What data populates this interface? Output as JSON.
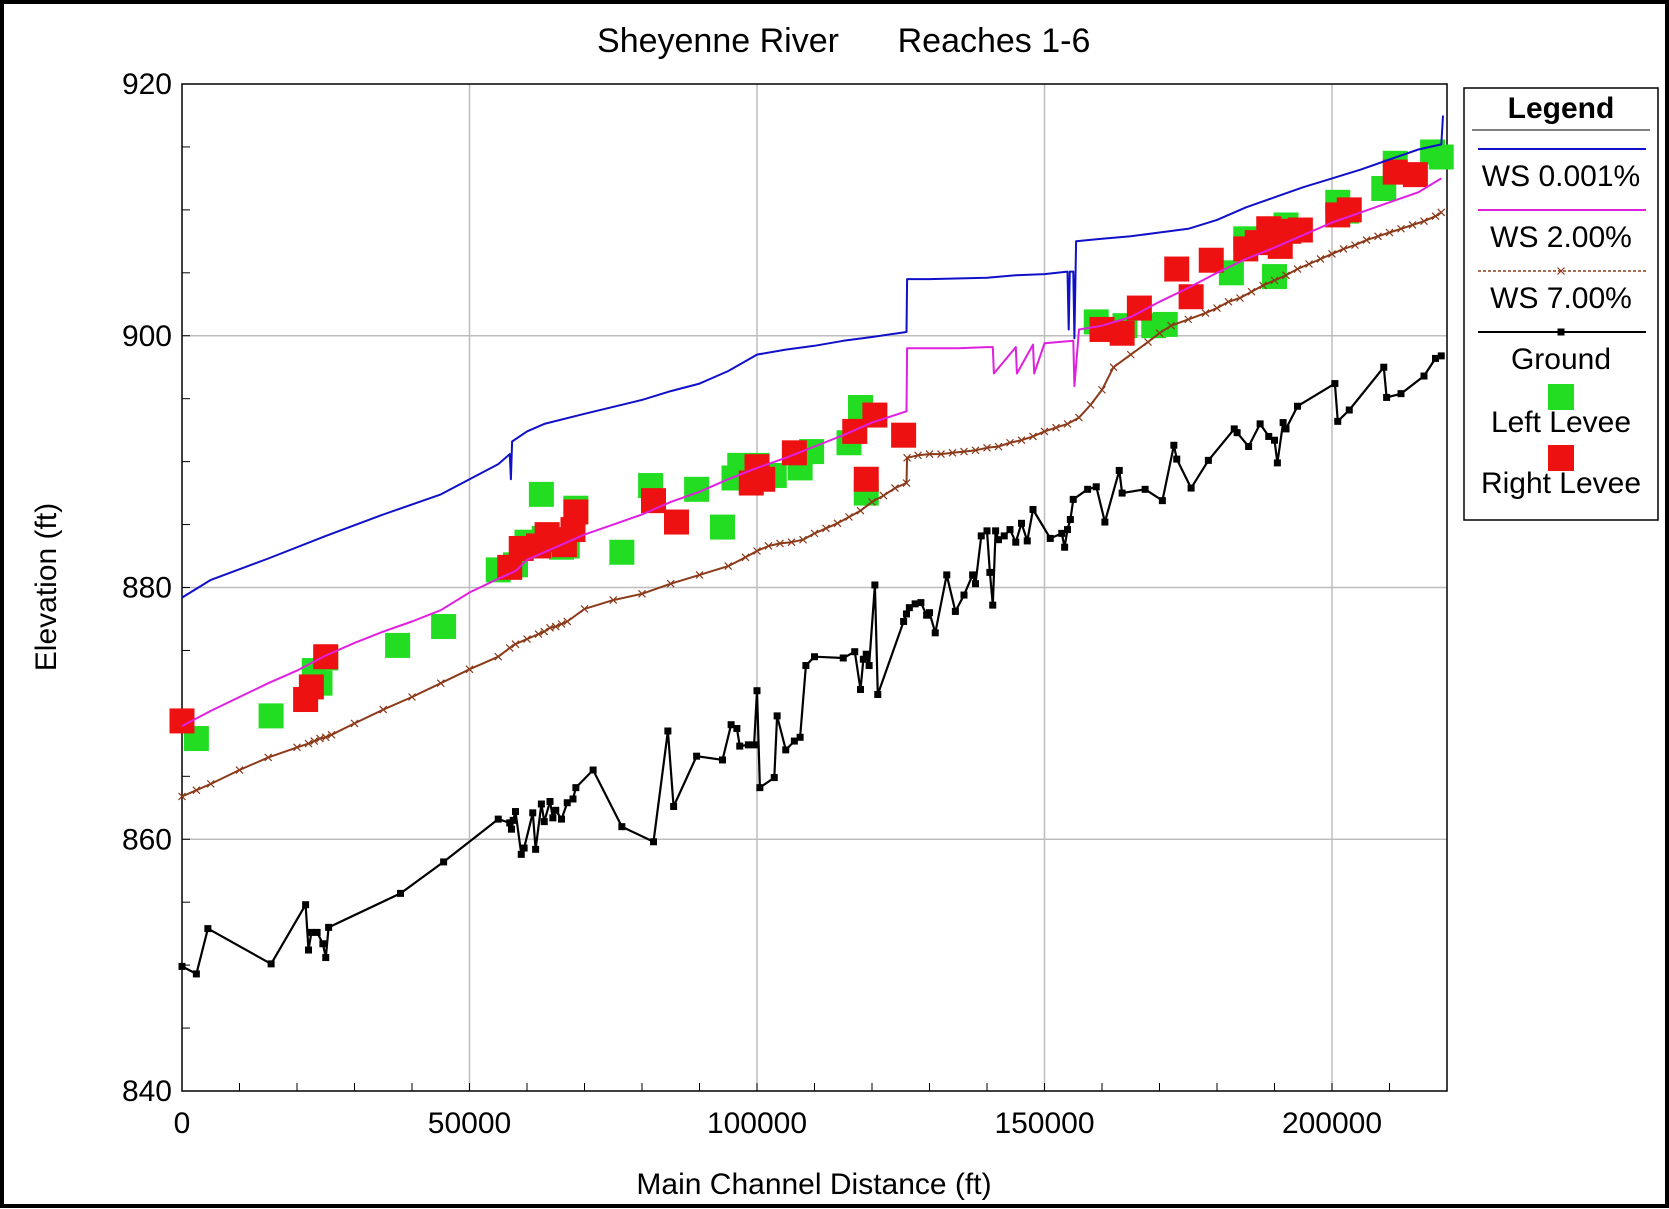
{
  "chart_data": {
    "type": "line",
    "title_left": "Sheyenne River",
    "title_right": "Reaches 1-6",
    "xlabel": "Main Channel Distance (ft)",
    "ylabel": "Elevation (ft)",
    "xlim": [
      0,
      220000
    ],
    "ylim": [
      840,
      920
    ],
    "x_ticks": [
      0,
      50000,
      100000,
      150000,
      200000
    ],
    "x_tick_labels": [
      "0",
      "50000",
      "100000",
      "150000",
      "200000"
    ],
    "y_ticks": [
      840,
      860,
      880,
      900,
      920
    ],
    "y_tick_labels": [
      "840",
      "860",
      "880",
      "900",
      "920"
    ],
    "grid": true,
    "legend": {
      "title": "Legend",
      "placement": "right",
      "entries": [
        "WS  0.001%",
        "WS  2.00%",
        "WS  7.00%",
        "Ground",
        "Left Levee",
        "Right Levee"
      ]
    },
    "series": [
      {
        "name": "WS  0.001%",
        "color": "#1010c8",
        "style": "line",
        "x": [
          0,
          5000,
          15000,
          25000,
          35000,
          45000,
          55000,
          57000,
          57200,
          57400,
          60000,
          63000,
          70000,
          80000,
          85000,
          90000,
          95000,
          100000,
          105000,
          110000,
          115000,
          120000,
          126000,
          126100,
          130000,
          140000,
          145000,
          150000,
          154000,
          154200,
          154400,
          155000,
          155200,
          155500,
          160000,
          165000,
          170000,
          175000,
          180000,
          185000,
          190000,
          195000,
          200000,
          205000,
          210000,
          215000,
          219000,
          219300
        ],
        "y": [
          879.2,
          880.6,
          882.3,
          884.1,
          885.8,
          887.4,
          889.8,
          890.6,
          888.6,
          891.6,
          892.4,
          893.0,
          893.8,
          894.9,
          895.6,
          896.2,
          897.2,
          898.5,
          898.9,
          899.2,
          899.6,
          899.9,
          900.3,
          904.5,
          904.5,
          904.6,
          904.8,
          904.9,
          905.1,
          900.5,
          905.1,
          905.1,
          899.8,
          907.5,
          907.7,
          907.9,
          908.2,
          908.5,
          909.2,
          910.2,
          911.0,
          911.8,
          912.5,
          913.2,
          914.0,
          914.8,
          915.2,
          917.5
        ]
      },
      {
        "name": "WS  2.00%",
        "color": "#e020e0",
        "style": "line",
        "x": [
          0,
          5000,
          10000,
          15000,
          20000,
          25000,
          30000,
          35000,
          40000,
          45000,
          50000,
          55000,
          58000,
          60000,
          65000,
          70000,
          75000,
          80000,
          85000,
          90000,
          95000,
          100000,
          105000,
          110000,
          115000,
          120000,
          126000,
          126100,
          130000,
          135000,
          140000,
          141000,
          141200,
          145000,
          145200,
          148000,
          148200,
          150000,
          155000,
          155200,
          156000,
          160000,
          165000,
          170000,
          175000,
          180000,
          185000,
          190000,
          195000,
          200000,
          205000,
          210000,
          215000,
          219000
        ],
        "y": [
          869.0,
          870.2,
          871.3,
          872.4,
          873.4,
          874.6,
          875.6,
          876.5,
          877.3,
          878.2,
          879.6,
          880.7,
          881.3,
          882.2,
          883.2,
          884.2,
          885.0,
          885.8,
          886.8,
          887.6,
          888.6,
          889.5,
          890.3,
          891.2,
          892.1,
          893.1,
          894.0,
          899.0,
          899.0,
          899.0,
          899.1,
          899.1,
          897.0,
          899.1,
          897.0,
          899.3,
          897.0,
          899.4,
          899.6,
          896.0,
          900.5,
          900.8,
          901.5,
          902.7,
          903.8,
          905.0,
          906.1,
          907.0,
          908.0,
          909.0,
          909.8,
          910.6,
          911.4,
          912.5
        ]
      },
      {
        "name": "WS  7.00%",
        "color": "#8b3a1a",
        "style": "line-x-markers",
        "x": [
          0,
          2500,
          5000,
          10000,
          15000,
          20000,
          22000,
          23000,
          24000,
          25000,
          26000,
          30000,
          35000,
          40000,
          45000,
          50000,
          55000,
          57000,
          58000,
          60000,
          62000,
          63000,
          64000,
          65000,
          66000,
          67000,
          70000,
          75000,
          80000,
          85000,
          90000,
          95000,
          98000,
          100000,
          102000,
          104000,
          106000,
          108000,
          110000,
          112000,
          114000,
          116000,
          118000,
          120000,
          122000,
          124000,
          126000,
          126100,
          128000,
          130000,
          132000,
          134000,
          136000,
          138000,
          140000,
          142000,
          144000,
          146000,
          148000,
          150000,
          152000,
          154000,
          156000,
          158000,
          160000,
          162000,
          165000,
          168000,
          170000,
          172000,
          175000,
          178000,
          180000,
          182000,
          184000,
          186000,
          188000,
          190000,
          192000,
          194000,
          196000,
          198000,
          200000,
          202000,
          204000,
          206000,
          208000,
          210000,
          212000,
          214000,
          216000,
          218000,
          219000
        ],
        "y": [
          863.4,
          863.9,
          864.4,
          865.5,
          866.5,
          867.3,
          867.6,
          867.8,
          868.0,
          868.1,
          868.3,
          869.2,
          870.3,
          871.3,
          872.4,
          873.5,
          874.5,
          875.2,
          875.5,
          875.9,
          876.3,
          876.5,
          876.8,
          876.9,
          877.1,
          877.3,
          878.3,
          879.0,
          879.5,
          880.3,
          881.0,
          881.7,
          882.4,
          882.9,
          883.3,
          883.5,
          883.6,
          883.8,
          884.3,
          884.7,
          885.1,
          885.6,
          886.1,
          886.8,
          887.3,
          887.9,
          888.3,
          890.3,
          890.5,
          890.6,
          890.6,
          890.7,
          890.8,
          890.9,
          891.1,
          891.2,
          891.5,
          891.7,
          892.0,
          892.4,
          892.7,
          893.0,
          893.5,
          894.5,
          895.7,
          897.5,
          898.5,
          899.5,
          900.2,
          900.8,
          901.3,
          901.8,
          902.2,
          902.7,
          903.0,
          903.5,
          904.0,
          904.4,
          904.8,
          905.3,
          905.7,
          906.1,
          906.5,
          906.9,
          907.2,
          907.6,
          907.9,
          908.2,
          908.5,
          908.8,
          909.1,
          909.5,
          909.8
        ]
      },
      {
        "name": "Ground",
        "color": "#000000",
        "style": "line-square-markers",
        "x": [
          0,
          2500,
          4500,
          15500,
          21500,
          22000,
          22500,
          23500,
          24500,
          25000,
          25500,
          38000,
          45500,
          55000,
          57000,
          57300,
          57600,
          58000,
          59000,
          59500,
          61000,
          61500,
          62500,
          63000,
          64000,
          64500,
          65000,
          66000,
          67000,
          68000,
          68500,
          71500,
          76500,
          82000,
          84500,
          85500,
          89500,
          94000,
          95500,
          96500,
          97000,
          98500,
          99500,
          100000,
          100500,
          103000,
          103500,
          105000,
          106500,
          107500,
          108500,
          110000,
          115000,
          117000,
          118000,
          118500,
          119000,
          119500,
          120500,
          121000,
          125500,
          126000,
          126500,
          127500,
          128500,
          129500,
          130000,
          131000,
          133000,
          134500,
          136000,
          137500,
          138000,
          139000,
          140000,
          140500,
          141000,
          141500,
          142000,
          143000,
          144000,
          145000,
          146000,
          147000,
          148000,
          151000,
          153000,
          153500,
          154000,
          154500,
          155000,
          157500,
          159000,
          160500,
          163000,
          163500,
          167500,
          170500,
          172500,
          173000,
          175500,
          178500,
          183000,
          183500,
          185500,
          187500,
          189000,
          190000,
          190500,
          191500,
          192000,
          194000,
          200500,
          201000,
          203000,
          209000,
          209500,
          212000,
          216000,
          218000,
          219000
        ],
        "y": [
          849.9,
          849.3,
          852.9,
          850.1,
          854.8,
          851.2,
          852.6,
          852.6,
          851.7,
          850.6,
          853.0,
          855.7,
          858.2,
          861.6,
          861.3,
          860.8,
          861.5,
          862.2,
          858.8,
          859.3,
          862.1,
          859.2,
          862.8,
          861.4,
          863.0,
          861.7,
          862.3,
          861.6,
          862.9,
          863.2,
          864.1,
          865.5,
          861.0,
          859.8,
          868.6,
          862.6,
          866.6,
          866.3,
          869.1,
          868.8,
          867.4,
          867.5,
          867.5,
          871.8,
          864.1,
          864.9,
          869.8,
          867.1,
          867.8,
          868.1,
          873.8,
          874.5,
          874.4,
          874.9,
          871.9,
          874.3,
          874.7,
          873.8,
          880.2,
          871.5,
          877.3,
          877.9,
          878.4,
          878.7,
          878.8,
          877.8,
          878.0,
          876.4,
          881.0,
          878.1,
          879.4,
          881.0,
          880.3,
          884.1,
          884.5,
          881.2,
          878.6,
          884.5,
          883.8,
          884.1,
          884.6,
          883.6,
          885.1,
          883.7,
          886.2,
          883.9,
          884.3,
          883.2,
          884.6,
          885.4,
          887.0,
          887.8,
          888.0,
          885.2,
          889.3,
          887.5,
          887.8,
          886.9,
          891.3,
          890.2,
          887.9,
          890.1,
          892.6,
          892.3,
          891.2,
          893.0,
          892.0,
          891.7,
          889.9,
          893.1,
          892.6,
          894.4,
          896.2,
          893.2,
          894.1,
          897.5,
          895.1,
          895.4,
          896.8,
          898.2,
          898.4
        ]
      },
      {
        "name": "Left Levee",
        "color": "#22dd22",
        "style": "markers",
        "x": [
          2500,
          15500,
          23000,
          24000,
          25000,
          37500,
          45500,
          55000,
          58000,
          60000,
          62500,
          63000,
          66000,
          67000,
          68500,
          76500,
          81500,
          89500,
          94000,
          96000,
          97000,
          100000,
          103000,
          107500,
          109500,
          116000,
          118000,
          119000,
          159000,
          164000,
          169000,
          171000,
          182500,
          185000,
          190000,
          192000,
          201000,
          202500,
          209000,
          211000,
          217500,
          219000
        ],
        "y": [
          868.0,
          869.8,
          873.4,
          872.4,
          874.4,
          875.4,
          876.9,
          881.4,
          881.8,
          883.6,
          887.4,
          883.9,
          883.2,
          883.3,
          886.3,
          882.8,
          888.1,
          887.8,
          884.8,
          888.7,
          889.7,
          889.7,
          888.9,
          889.5,
          890.8,
          891.5,
          894.3,
          887.5,
          901.1,
          900.8,
          900.8,
          900.9,
          905.0,
          907.7,
          904.7,
          908.8,
          910.6,
          909.9,
          911.7,
          913.7,
          914.6,
          914.2
        ]
      },
      {
        "name": "Right Levee",
        "color": "#ee1111",
        "style": "markers",
        "x": [
          0,
          21500,
          22500,
          25000,
          57000,
          59000,
          62000,
          63500,
          64500,
          66500,
          68000,
          68500,
          82000,
          86000,
          99000,
          100000,
          101000,
          106500,
          117000,
          119000,
          120500,
          125500,
          160000,
          163500,
          166500,
          173000,
          175500,
          179000,
          185000,
          187000,
          189000,
          191000,
          192500,
          194500,
          201000,
          203000,
          211000,
          214500
        ],
        "y": [
          869.4,
          871.1,
          872.1,
          874.5,
          881.6,
          883.1,
          883.3,
          884.2,
          883.8,
          883.4,
          884.6,
          886.0,
          886.9,
          885.2,
          888.3,
          889.6,
          888.6,
          890.7,
          892.4,
          888.6,
          893.7,
          892.1,
          900.5,
          900.2,
          902.2,
          905.3,
          903.1,
          906.0,
          906.9,
          907.4,
          908.5,
          907.1,
          908.3,
          908.4,
          909.6,
          910.0,
          913.0,
          912.8
        ]
      }
    ]
  }
}
